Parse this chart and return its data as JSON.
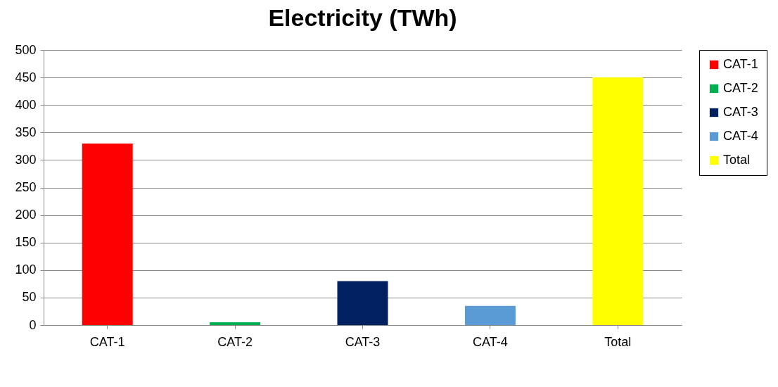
{
  "chart_data": {
    "type": "bar",
    "title": "Electricity (TWh)",
    "categories": [
      "CAT-1",
      "CAT-2",
      "CAT-3",
      "CAT-4",
      "Total"
    ],
    "series": [
      {
        "name": "CAT-1",
        "color": "#ff0000",
        "values": [
          330,
          null,
          null,
          null,
          null
        ]
      },
      {
        "name": "CAT-2",
        "color": "#00b050",
        "values": [
          null,
          5,
          null,
          null,
          null
        ]
      },
      {
        "name": "CAT-3",
        "color": "#002060",
        "values": [
          null,
          null,
          80,
          null,
          null
        ]
      },
      {
        "name": "CAT-4",
        "color": "#5b9bd5",
        "values": [
          null,
          null,
          null,
          35,
          null
        ]
      },
      {
        "name": "Total",
        "color": "#ffff00",
        "values": [
          null,
          null,
          null,
          null,
          450
        ]
      }
    ],
    "ylim": [
      0,
      500
    ],
    "yticks": [
      0,
      50,
      100,
      150,
      200,
      250,
      300,
      350,
      400,
      450,
      500
    ],
    "grid": "y",
    "legend": "right"
  }
}
